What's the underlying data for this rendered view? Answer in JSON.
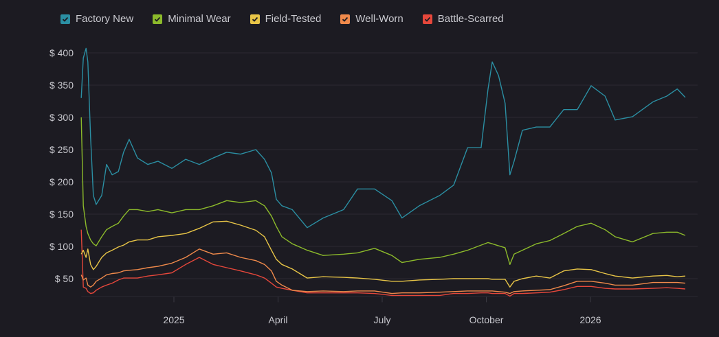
{
  "chart_data": {
    "type": "line",
    "title": "",
    "xlabel": "",
    "ylabel": "",
    "x_units": "months since 2025-01-01",
    "xlim": [
      -2.67,
      14.73
    ],
    "ylim": [
      22,
      410
    ],
    "grid": true,
    "legend_position": "top-left",
    "y_ticks": [
      {
        "value": 400,
        "label": "$ 400"
      },
      {
        "value": 350,
        "label": "$ 350"
      },
      {
        "value": 300,
        "label": "$ 300"
      },
      {
        "value": 250,
        "label": "$ 250"
      },
      {
        "value": 200,
        "label": "$ 200"
      },
      {
        "value": 150,
        "label": "$ 150"
      },
      {
        "value": 100,
        "label": "$ 100"
      },
      {
        "value": 50,
        "label": "$ 50"
      }
    ],
    "x_ticks": [
      {
        "value": 0,
        "label": "2025"
      },
      {
        "value": 3,
        "label": "April"
      },
      {
        "value": 6,
        "label": "July"
      },
      {
        "value": 9,
        "label": "October"
      },
      {
        "value": 12,
        "label": "2026"
      }
    ],
    "x": [
      -2.67,
      -2.61,
      -2.53,
      -2.48,
      -2.4,
      -2.32,
      -2.24,
      -2.08,
      -1.94,
      -1.78,
      -1.6,
      -1.45,
      -1.29,
      -1.05,
      -0.75,
      -0.46,
      -0.06,
      0.34,
      0.73,
      1.13,
      1.52,
      1.92,
      2.36,
      2.61,
      2.81,
      2.95,
      3.11,
      3.41,
      3.84,
      4.3,
      4.89,
      5.29,
      5.78,
      6.28,
      6.57,
      7.07,
      7.66,
      8.06,
      8.46,
      8.85,
      9.05,
      9.17,
      9.35,
      9.54,
      9.68,
      9.8,
      10.04,
      10.44,
      10.83,
      11.23,
      11.62,
      12.02,
      12.42,
      12.71,
      13.21,
      13.8,
      14.2,
      14.5,
      14.73
    ],
    "series": [
      {
        "name": "Factory New",
        "color": "#2b8fa3",
        "values": [
          330,
          392,
          407,
          386,
          269,
          179,
          165,
          179,
          227,
          211,
          216,
          246,
          266,
          237,
          227,
          232,
          221,
          235,
          227,
          237,
          246,
          243,
          250,
          235,
          214,
          173,
          163,
          157,
          129,
          144,
          157,
          189,
          189,
          171,
          144,
          163,
          179,
          195,
          253,
          253,
          344,
          386,
          365,
          322,
          211,
          232,
          280,
          285,
          285,
          312,
          312,
          349,
          333,
          296,
          301,
          324,
          333,
          344,
          331
        ]
      },
      {
        "name": "Minimal Wear",
        "color": "#8cba2b",
        "values": [
          300,
          163,
          131,
          120,
          110,
          104,
          101,
          115,
          126,
          131,
          136,
          147,
          157,
          157,
          154,
          157,
          152,
          157,
          157,
          163,
          171,
          168,
          171,
          163,
          147,
          131,
          115,
          104,
          94,
          86,
          88,
          90,
          97,
          86,
          75,
          80,
          83,
          88,
          94,
          102,
          106,
          104,
          101,
          98,
          72,
          88,
          94,
          104,
          109,
          120,
          131,
          136,
          126,
          115,
          107,
          120,
          122,
          122,
          117
        ]
      },
      {
        "name": "Field-Tested",
        "color": "#e8c547",
        "values": [
          88,
          94,
          83,
          96,
          72,
          64,
          69,
          83,
          90,
          94,
          99,
          102,
          107,
          110,
          110,
          115,
          117,
          120,
          128,
          138,
          139,
          133,
          125,
          115,
          94,
          80,
          72,
          65,
          51,
          53,
          52,
          51,
          49,
          46,
          46,
          48,
          49,
          50,
          50,
          50,
          50,
          49,
          49,
          49,
          37,
          46,
          50,
          54,
          51,
          62,
          65,
          64,
          58,
          54,
          51,
          54,
          55,
          53,
          54
        ]
      },
      {
        "name": "Well-Worn",
        "color": "#f08a4b",
        "values": [
          56,
          48,
          51,
          40,
          37,
          40,
          46,
          51,
          56,
          58,
          59,
          62,
          63,
          64,
          67,
          69,
          74,
          83,
          96,
          88,
          90,
          83,
          78,
          72,
          62,
          46,
          40,
          32,
          30,
          31,
          30,
          31,
          31,
          27,
          28,
          28,
          29,
          30,
          31,
          31,
          31,
          31,
          30,
          29,
          27,
          30,
          31,
          32,
          33,
          39,
          46,
          46,
          43,
          40,
          40,
          44,
          44,
          44,
          43
        ]
      },
      {
        "name": "Battle-Scarred",
        "color": "#e6473b",
        "values": [
          126,
          37,
          35,
          30,
          27,
          28,
          32,
          37,
          40,
          43,
          48,
          51,
          51,
          51,
          54,
          56,
          59,
          72,
          83,
          72,
          67,
          62,
          56,
          51,
          43,
          37,
          35,
          32,
          28,
          28,
          28,
          28,
          27,
          24,
          24,
          24,
          24,
          27,
          27,
          28,
          28,
          27,
          27,
          27,
          23,
          27,
          27,
          28,
          29,
          33,
          38,
          38,
          35,
          34,
          34,
          35,
          36,
          35,
          34
        ]
      }
    ]
  }
}
